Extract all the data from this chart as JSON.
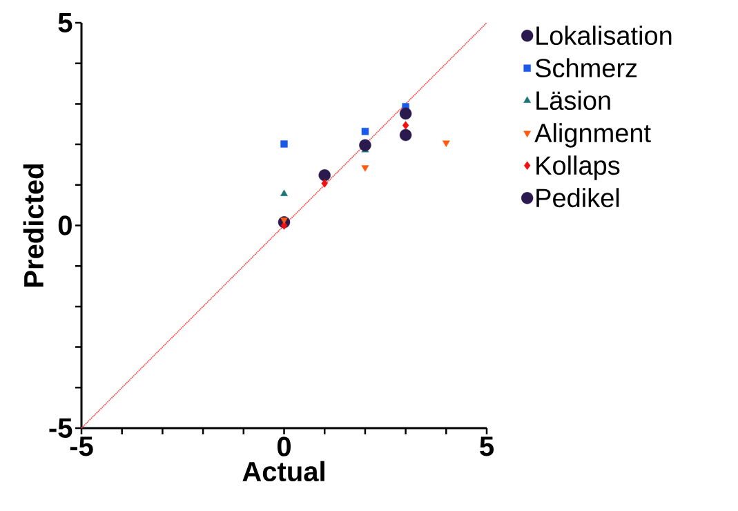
{
  "chart_data": {
    "type": "scatter",
    "xlabel": "Actual",
    "ylabel": "Predicted",
    "xlim": [
      -5,
      5
    ],
    "ylim": [
      -5,
      5
    ],
    "xticks": [
      -5,
      {
        "value": -4,
        "label": null
      },
      {
        "value": -3,
        "label": null
      },
      {
        "value": -2,
        "label": null
      },
      {
        "value": -1,
        "label": null
      },
      0,
      {
        "value": 1,
        "label": null
      },
      {
        "value": 2,
        "label": null
      },
      {
        "value": 3,
        "label": null
      },
      {
        "value": 4,
        "label": null
      },
      5
    ],
    "yticks": [
      -5,
      {
        "value": -4,
        "label": null
      },
      {
        "value": -3,
        "label": null
      },
      {
        "value": -2,
        "label": null
      },
      {
        "value": -1,
        "label": null
      },
      0,
      {
        "value": 1,
        "label": null
      },
      {
        "value": 2,
        "label": null
      },
      {
        "value": 3,
        "label": null
      },
      {
        "value": 4,
        "label": null
      },
      5
    ],
    "legend": "right",
    "series": [
      {
        "name": "Lokalisation",
        "color": "#2a1a4e",
        "marker": "circle",
        "x": [
          2,
          3
        ],
        "values": [
          1.98,
          2.76
        ]
      },
      {
        "name": "Schmerz",
        "color": "#1a5ae8",
        "marker": "square",
        "x": [
          0,
          2,
          3
        ],
        "values": [
          2.01,
          2.32,
          2.93
        ]
      },
      {
        "name": "Läsion",
        "color": "#1f7478",
        "marker": "triangle",
        "x": [
          0,
          2
        ],
        "values": [
          0.78,
          1.86
        ]
      },
      {
        "name": "Alignment",
        "color": "#ff5a10",
        "marker": "triangle-down",
        "x": [
          0,
          2,
          4
        ],
        "values": [
          0.14,
          1.43,
          2.04
        ]
      },
      {
        "name": "Kollaps",
        "color": "#f01010",
        "marker": "diamond",
        "x": [
          0,
          1,
          3
        ],
        "values": [
          0.0,
          1.04,
          2.47
        ]
      },
      {
        "name": "Pedikel",
        "color": "#2a1a4e",
        "marker": "circle",
        "x": [
          0,
          1,
          3
        ],
        "values": [
          0.08,
          1.24,
          2.23
        ]
      },
      {
        "type": "line",
        "color": "#ff5050",
        "line_style": "dotted",
        "marker": "none",
        "x": [
          -5,
          5
        ],
        "values": [
          -5,
          5
        ]
      }
    ]
  }
}
